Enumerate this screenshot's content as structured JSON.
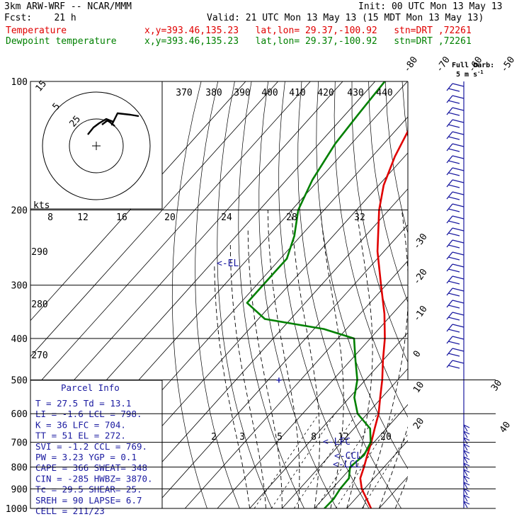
{
  "header": {
    "model": "3km ARW-WRF -- NCAR/MMM",
    "init": "Init: 00 UTC Mon 13 May 13",
    "fcst": "Fcst:    21 h",
    "valid": "Valid: 21 UTC Mon 13 May 13 (15 MDT Mon 13 May 13)",
    "temp_label": "Temperature",
    "temp_info": "x,y=393.46,135.23   lat,lon= 29.37,-100.92   stn=DRT ,72261",
    "dew_label": "Dewpoint temperature",
    "dew_info": "x,y=393.46,135.23   lat,lon= 29.37,-100.92   stn=DRT ,72261"
  },
  "barb_legend": {
    "title": "Full barb:",
    "units": "5 m s",
    "superscript": "-1"
  },
  "hodograph": {
    "ring_labels": [
      "15",
      "5",
      "25"
    ],
    "kts_label": "kts"
  },
  "colors": {
    "temperature": "#e00000",
    "dewpoint": "#008000",
    "info": "#1a1aa0",
    "background": "#ffffff"
  },
  "chart_data": {
    "type": "line",
    "ylabel": "",
    "y_scale": "log",
    "ylim": [
      1000,
      100
    ],
    "pressure_ticks": [
      100,
      200,
      300,
      400,
      500,
      600,
      700,
      800,
      900,
      1000
    ],
    "isotherm_labels": [
      -80,
      -70,
      -60,
      -50,
      -40,
      -30,
      -20,
      -10,
      0,
      10,
      20,
      30,
      40
    ],
    "theta_e_labels": [
      370,
      380,
      390,
      400,
      410,
      420,
      430,
      440
    ],
    "theta_labels": [
      290,
      280,
      270
    ],
    "mixing_ratio_labels": [
      8,
      12,
      16,
      20,
      24,
      28,
      32
    ],
    "mixing_ratio_low_labels": [
      2,
      3,
      5,
      8,
      12,
      20
    ],
    "series": [
      {
        "name": "Temperature",
        "color": "#e00000",
        "points": [
          [
            1000,
            27.5
          ],
          [
            950,
            23.5
          ],
          [
            900,
            19.2
          ],
          [
            850,
            15.8
          ],
          [
            800,
            13.8
          ],
          [
            750,
            11.5
          ],
          [
            700,
            9.2
          ],
          [
            650,
            6.4
          ],
          [
            600,
            3.5
          ],
          [
            550,
            -0.5
          ],
          [
            500,
            -4.8
          ],
          [
            450,
            -10.0
          ],
          [
            400,
            -15.5
          ],
          [
            350,
            -22.5
          ],
          [
            300,
            -31.5
          ],
          [
            250,
            -42.0
          ],
          [
            200,
            -53.0
          ],
          [
            175,
            -58.5
          ],
          [
            150,
            -63.0
          ],
          [
            125,
            -67.0
          ],
          [
            110,
            -68.5
          ],
          [
            100,
            -69.5
          ]
        ]
      },
      {
        "name": "Dewpoint temperature",
        "color": "#008000",
        "points": [
          [
            1000,
            13.1
          ],
          [
            950,
            13.3
          ],
          [
            900,
            12.5
          ],
          [
            850,
            12.3
          ],
          [
            800,
            9.5
          ],
          [
            775,
            10.0
          ],
          [
            750,
            10.5
          ],
          [
            700,
            9.0
          ],
          [
            650,
            5.0
          ],
          [
            600,
            -3.0
          ],
          [
            550,
            -8.5
          ],
          [
            500,
            -12.5
          ],
          [
            450,
            -18.5
          ],
          [
            400,
            -25.0
          ],
          [
            380,
            -37.0
          ],
          [
            360,
            -58.0
          ],
          [
            330,
            -68.0
          ],
          [
            300,
            -68.0
          ],
          [
            260,
            -68.0
          ],
          [
            230,
            -72.0
          ],
          [
            200,
            -78.0
          ],
          [
            170,
            -82.0
          ],
          [
            140,
            -85.0
          ],
          [
            120,
            -86.0
          ],
          [
            100,
            -87.0
          ]
        ]
      }
    ],
    "levels": {
      "EL": 272,
      "LFC": 704,
      "CCL": 769,
      "LCL": 798
    },
    "level_labels": {
      "EL": "EL",
      "LFC": "LFC",
      "CCL": "CCL",
      "LCL": "LCL"
    }
  },
  "parcel_info": {
    "title": "Parcel Info",
    "rows": [
      "T  =    27.5  Td =  13.1",
      "LI =    -1.6  LCL =  798.",
      "K  =     36  LFC =  704.",
      "TT =     51  EL  =  272.",
      "SVI =   -1.2  CCL =  769.",
      "PW =   3.23  YGP =   0.1",
      "CAPE =   366  SWEAT=  348",
      "CIN =  -285  HWBZ= 3870.",
      "Tc =   29.5  SHEAR=  25.",
      "SREH =    90  LAPSE=  6.7",
      "CELL = 211/23"
    ]
  }
}
